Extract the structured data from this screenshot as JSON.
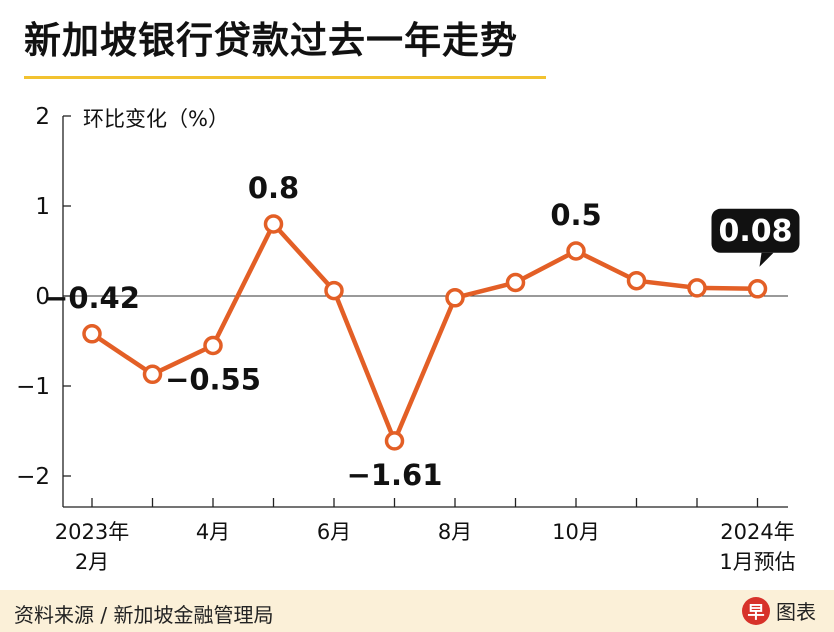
{
  "title": "新加坡银行贷款过去一年走势",
  "source": "资料来源 / 新加坡金融管理局",
  "brand": {
    "logo_char": "早",
    "label": "图表"
  },
  "chart_data": {
    "type": "line",
    "ylabel": "环比变化（%）",
    "ylim": [
      -2,
      2
    ],
    "yticks": [
      "2",
      "1",
      "0",
      "−1",
      "−2"
    ],
    "ytick_values": [
      2,
      1,
      0,
      -1,
      -2
    ],
    "x_tick_labels": [
      {
        "index": 0,
        "lines": [
          "2023年",
          "2月"
        ]
      },
      {
        "index": 2,
        "lines": [
          "4月"
        ]
      },
      {
        "index": 4,
        "lines": [
          "6月"
        ]
      },
      {
        "index": 6,
        "lines": [
          "8月"
        ]
      },
      {
        "index": 8,
        "lines": [
          "10月"
        ]
      },
      {
        "index": 11,
        "lines": [
          "2024年",
          "1月预估"
        ]
      }
    ],
    "series": [
      {
        "values": [
          -0.42,
          -0.87,
          -0.55,
          0.8,
          0.06,
          -1.61,
          -0.02,
          0.15,
          0.5,
          0.17,
          0.09,
          0.08
        ],
        "color": "#e35f26"
      }
    ],
    "data_labels": [
      {
        "index": 0,
        "text": "−0.42",
        "pos": "above"
      },
      {
        "index": 2,
        "text": "−0.55",
        "pos": "below"
      },
      {
        "index": 3,
        "text": "0.8",
        "pos": "above"
      },
      {
        "index": 5,
        "text": "−1.61",
        "pos": "below"
      },
      {
        "index": 8,
        "text": "0.5",
        "pos": "above"
      },
      {
        "index": 11,
        "text": "0.08",
        "pos": "callout"
      }
    ],
    "grid": false,
    "zero_line": true
  }
}
